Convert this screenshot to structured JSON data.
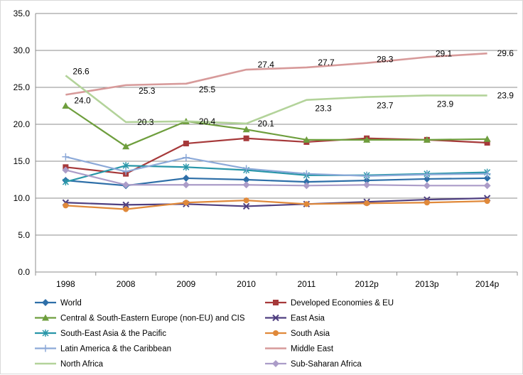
{
  "chart_data": {
    "type": "line",
    "title": "",
    "xlabel": "",
    "ylabel": "",
    "categories": [
      "1998",
      "2008",
      "2009",
      "2010",
      "2011",
      "2012p",
      "2013p",
      "2014p"
    ],
    "ylim": [
      0,
      35
    ],
    "yticks": [
      "0.0",
      "5.0",
      "10.0",
      "15.0",
      "20.0",
      "25.0",
      "30.0",
      "35.0"
    ],
    "grid": true,
    "legend_position": "bottom",
    "series": [
      {
        "name": "World",
        "color": "#2e6fa8",
        "marker": "diamond",
        "values": [
          12.4,
          11.7,
          12.7,
          12.5,
          12.2,
          12.4,
          12.6,
          12.7
        ]
      },
      {
        "name": "Developed Economies & EU",
        "color": "#a6393a",
        "marker": "square",
        "values": [
          14.2,
          13.3,
          17.4,
          18.1,
          17.6,
          18.1,
          17.9,
          17.5
        ]
      },
      {
        "name": "Central & South-Eastern Europe (non-EU) and CIS",
        "color": "#6e9e3d",
        "marker": "triangle",
        "values": [
          22.5,
          17.0,
          20.4,
          19.3,
          17.9,
          17.9,
          17.9,
          18.0
        ]
      },
      {
        "name": "East Asia",
        "color": "#4f3f80",
        "marker": "x",
        "values": [
          9.4,
          9.1,
          9.2,
          8.9,
          9.2,
          9.5,
          9.8,
          10.0
        ]
      },
      {
        "name": "South-East Asia & the Pacific",
        "color": "#2896a8",
        "marker": "star",
        "values": [
          12.2,
          14.4,
          14.2,
          13.8,
          13.1,
          13.1,
          13.3,
          13.5
        ]
      },
      {
        "name": "South Asia",
        "color": "#e0893a",
        "marker": "circle",
        "values": [
          9.0,
          8.5,
          9.4,
          9.7,
          9.2,
          9.3,
          9.4,
          9.6
        ]
      },
      {
        "name": "Latin America & the Caribbean",
        "color": "#8ca9d8",
        "marker": "plus",
        "values": [
          15.6,
          13.6,
          15.5,
          14.0,
          13.3,
          13.0,
          13.2,
          13.3
        ]
      },
      {
        "name": "Middle East",
        "color": "#d79a9a",
        "marker": "none",
        "values": [
          24.0,
          25.3,
          25.5,
          27.4,
          27.7,
          28.3,
          29.1,
          29.6
        ]
      },
      {
        "name": "North Africa",
        "color": "#b3d39a",
        "marker": "none",
        "values": [
          26.6,
          20.3,
          20.4,
          20.1,
          23.3,
          23.7,
          23.9,
          23.9
        ]
      },
      {
        "name": "Sub-Saharan Africa",
        "color": "#ab9cc8",
        "marker": "diamond",
        "values": [
          13.8,
          11.8,
          11.8,
          11.8,
          11.7,
          11.8,
          11.7,
          11.7
        ]
      }
    ],
    "data_labels": {
      "Middle East": [
        "24.0",
        "25.3",
        "25.5",
        "27.4",
        "27.7",
        "28.3",
        "29.1",
        "29.6"
      ],
      "North Africa": [
        "26.6",
        "20.3",
        "20.4",
        "20.1",
        "23.3",
        "23.7",
        "23.9",
        "23.9"
      ]
    }
  }
}
